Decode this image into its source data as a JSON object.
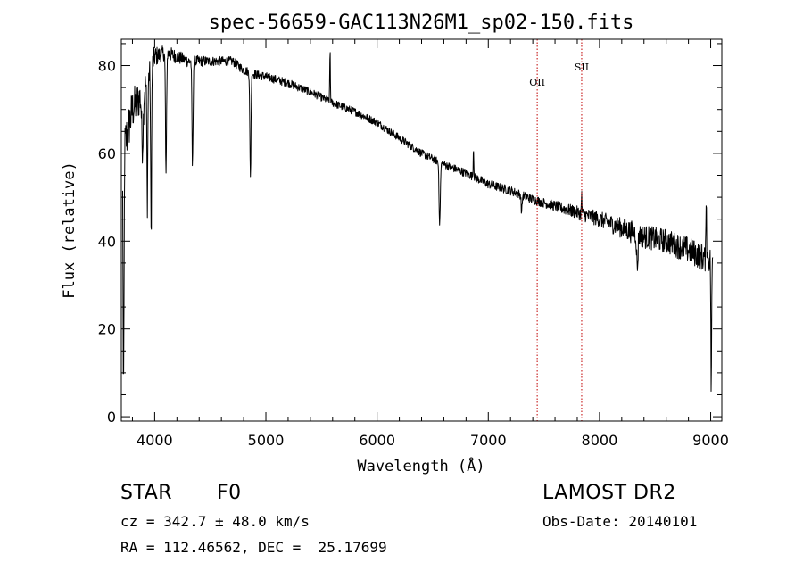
{
  "chart_data": {
    "type": "line",
    "title": "spec-56659-GAC113N26M1_sp02-150.fits",
    "xlabel": "Wavelength (Å)",
    "ylabel": "Flux (relative)",
    "xlim": [
      3700,
      9100
    ],
    "ylim": [
      -1,
      86
    ],
    "grid": false,
    "x_ticks": [
      4000,
      5000,
      6000,
      7000,
      8000,
      9000
    ],
    "y_ticks": [
      0,
      20,
      40,
      60,
      80
    ],
    "continuum": [
      [
        3700,
        58
      ],
      [
        3800,
        70
      ],
      [
        3900,
        74
      ],
      [
        4000,
        82
      ],
      [
        4100,
        83
      ],
      [
        4200,
        82
      ],
      [
        4300,
        81
      ],
      [
        4400,
        81
      ],
      [
        4500,
        81
      ],
      [
        4600,
        81
      ],
      [
        4700,
        81
      ],
      [
        4800,
        79
      ],
      [
        4900,
        78
      ],
      [
        5000,
        77.5
      ],
      [
        5200,
        76
      ],
      [
        5400,
        74
      ],
      [
        5600,
        71.5
      ],
      [
        5800,
        69.5
      ],
      [
        6000,
        67
      ],
      [
        6200,
        63.5
      ],
      [
        6400,
        60
      ],
      [
        6600,
        57.5
      ],
      [
        6800,
        55.5
      ],
      [
        7000,
        53
      ],
      [
        7200,
        51.5
      ],
      [
        7400,
        49.5
      ],
      [
        7600,
        48
      ],
      [
        7800,
        46.5
      ],
      [
        8000,
        45
      ],
      [
        8200,
        43
      ],
      [
        8400,
        41
      ],
      [
        8600,
        40
      ],
      [
        8800,
        38
      ],
      [
        8950,
        36
      ],
      [
        9000,
        36
      ]
    ],
    "noise": [
      [
        3700,
        6
      ],
      [
        3900,
        4
      ],
      [
        4050,
        1.8
      ],
      [
        4500,
        1.1
      ],
      [
        5500,
        0.9
      ],
      [
        6500,
        0.9
      ],
      [
        7500,
        1.1
      ],
      [
        8000,
        1.8
      ],
      [
        8300,
        2.6
      ],
      [
        8600,
        2.8
      ],
      [
        9000,
        3.2
      ]
    ],
    "features": [
      {
        "x": 3720,
        "w": 6,
        "depth": -58
      },
      {
        "x": 3890,
        "w": 10,
        "depth": -12
      },
      {
        "x": 3934,
        "w": 6,
        "depth": -28
      },
      {
        "x": 3968,
        "w": 6,
        "depth": -38
      },
      {
        "x": 4102,
        "w": 7,
        "depth": -28
      },
      {
        "x": 4340,
        "w": 7,
        "depth": -24
      },
      {
        "x": 4861,
        "w": 7,
        "depth": -24
      },
      {
        "x": 5577,
        "w": 4,
        "depth": 12
      },
      {
        "x": 6563,
        "w": 8,
        "depth": -14
      },
      {
        "x": 6867,
        "w": 4,
        "depth": 7
      },
      {
        "x": 7300,
        "w": 6,
        "depth": -4
      },
      {
        "x": 7840,
        "w": 4,
        "depth": 4
      },
      {
        "x": 8340,
        "w": 8,
        "depth": -8
      },
      {
        "x": 8960,
        "w": 4,
        "depth": 16
      },
      {
        "x": 9005,
        "w": 5,
        "depth": -30
      }
    ],
    "reference_lines": [
      {
        "x": 7440,
        "label": "OII"
      },
      {
        "x": 7840,
        "label": "SII"
      }
    ],
    "line_color": "#000000",
    "reference_line_color": "#c00000"
  },
  "info": {
    "class_label": "STAR",
    "subclass": "F0",
    "survey": "LAMOST DR2",
    "redshift_text": "cz = 342.7 ± 48.0 km/s",
    "obs_date_text": "Obs-Date: 20140101",
    "coords_text": "RA = 112.46562, DEC =  25.17699"
  }
}
